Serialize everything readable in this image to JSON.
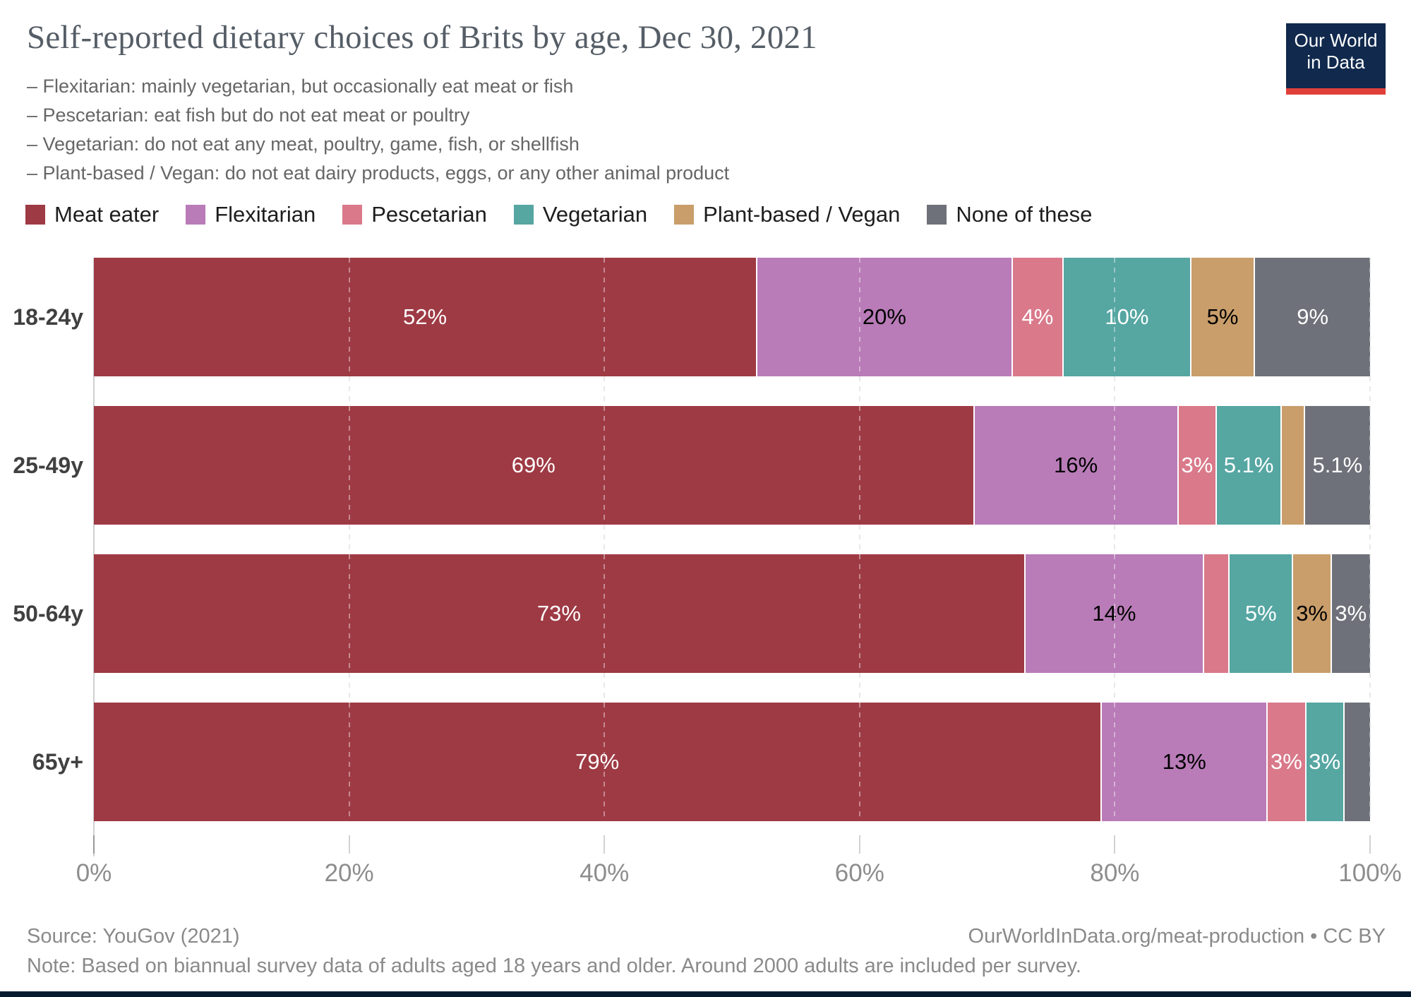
{
  "title": "Self-reported dietary choices of Brits by age, Dec 30, 2021",
  "subtitle_lines": [
    "– Flexitarian: mainly vegetarian, but occasionally eat meat or fish",
    "– Pescetarian: eat fish but do not eat meat or poultry",
    "– Vegetarian: do not eat any meat, poultry, game, fish, or shellfish",
    "– Plant-based / Vegan: do not eat dairy products, eggs, or any other animal product"
  ],
  "logo": {
    "line1": "Our World",
    "line2": "in Data",
    "bg_color": "#10294d",
    "accent_color": "#e0403a"
  },
  "chart_data": {
    "type": "bar",
    "stacked": true,
    "orientation": "horizontal",
    "categories": [
      "18-24y",
      "25-49y",
      "50-64y",
      "65y+"
    ],
    "series": [
      {
        "name": "Meat eater",
        "color": "#9e3a44",
        "label_color": "#ffffff",
        "values": [
          52,
          69,
          73,
          79
        ],
        "labels": [
          "52%",
          "69%",
          "73%",
          "79%"
        ]
      },
      {
        "name": "Flexitarian",
        "color": "#b97cb8",
        "label_color": "#000000",
        "values": [
          20,
          16,
          14,
          13
        ],
        "labels": [
          "20%",
          "16%",
          "14%",
          "13%"
        ]
      },
      {
        "name": "Pescetarian",
        "color": "#d9798a",
        "label_color": "#ffffff",
        "values": [
          4,
          3,
          2,
          3
        ],
        "labels": [
          "4%",
          "3%",
          "",
          "3%"
        ]
      },
      {
        "name": "Vegetarian",
        "color": "#56a6a2",
        "label_color": "#ffffff",
        "values": [
          10,
          5.1,
          5,
          3
        ],
        "labels": [
          "10%",
          "5.1%",
          "5%",
          "3%"
        ]
      },
      {
        "name": "Plant-based / Vegan",
        "color": "#c99e6b",
        "label_color": "#000000",
        "values": [
          5,
          1.8,
          3,
          0
        ],
        "labels": [
          "5%",
          "",
          "3%",
          ""
        ]
      },
      {
        "name": "None of these",
        "color": "#6e7179",
        "label_color": "#ffffff",
        "values": [
          9,
          5.1,
          3,
          2
        ],
        "labels": [
          "9%",
          "5.1%",
          "3%",
          ""
        ]
      }
    ],
    "x_ticks": [
      {
        "label": "0%",
        "value": 0
      },
      {
        "label": "20%",
        "value": 20
      },
      {
        "label": "40%",
        "value": 40
      },
      {
        "label": "60%",
        "value": 60
      },
      {
        "label": "80%",
        "value": 80
      },
      {
        "label": "100%",
        "value": 100
      }
    ],
    "xlim": [
      0,
      100
    ],
    "grid": true,
    "legend_position": "top"
  },
  "footer": {
    "source": "Source: YouGov (2021)",
    "link": "OurWorldInData.org/meat-production • CC BY",
    "note": "Note: Based on biannual survey data of adults aged 18 years and older. Around 2000 adults are included per survey."
  }
}
